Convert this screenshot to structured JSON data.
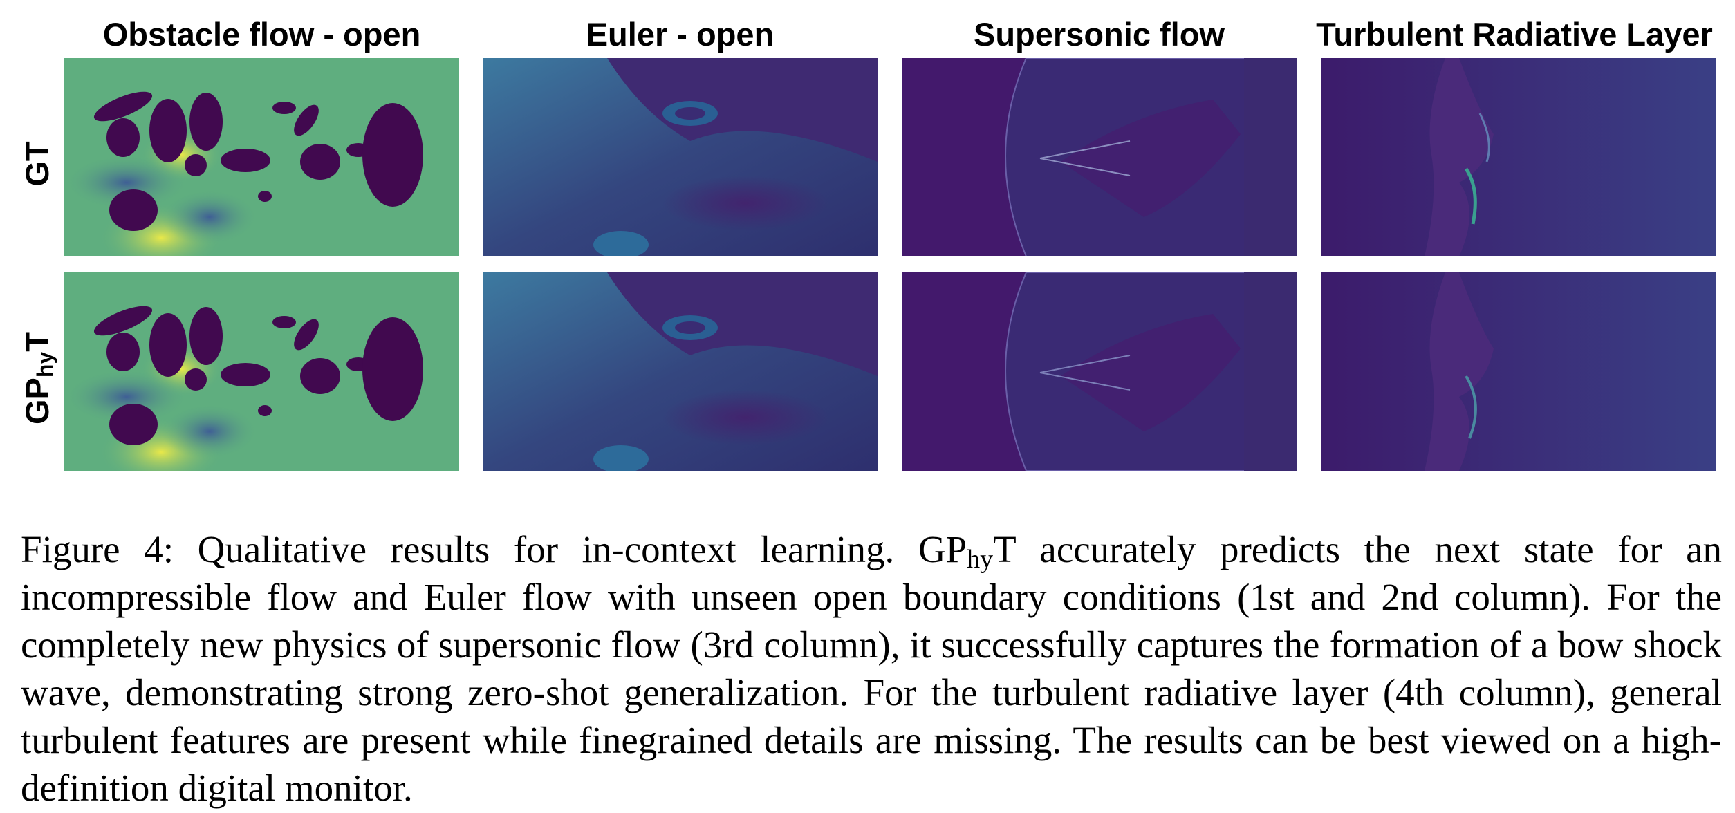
{
  "figure": {
    "columns": [
      "Obstacle flow - open",
      "Euler - open",
      "Supersonic flow",
      "Turbulent Radiative Layer"
    ],
    "rows": [
      {
        "main": "GT",
        "sub": "",
        "tail": ""
      },
      {
        "main": "GP",
        "sub": "hy",
        "tail": "T"
      }
    ],
    "colors": {
      "obstacle_bg": "#5fae7f",
      "obstacle_blob": "#41094f",
      "field_dark": "#3a1a6a",
      "field_mid": "#3d5a90",
      "highlight": "#e6e54a"
    }
  },
  "caption": {
    "label": "Figure 4:",
    "part1": " Qualitative results for in-context learning. GP",
    "sub": "hy",
    "part2": "T accurately predicts the next state for an incompressible flow and Euler flow with unseen open boundary conditions (1st and 2nd column). For the completely new physics of supersonic flow (3rd column), it successfully captures the formation of a bow shock wave, demonstrating strong zero-shot generalization. For the turbulent radiative layer (4th column), general turbulent features are present while finegrained details are missing. The results can be best viewed on a high-definition digital monitor."
  }
}
